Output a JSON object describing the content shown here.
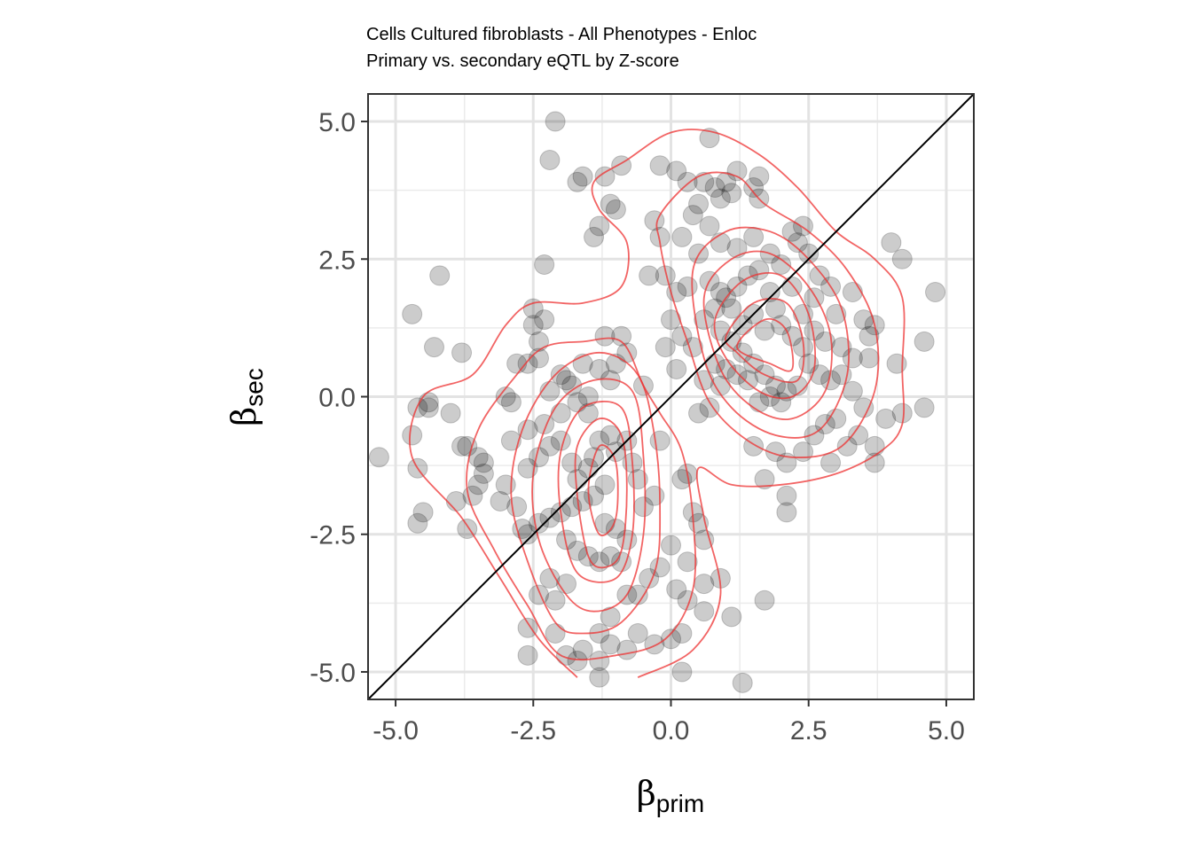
{
  "chart_data": {
    "type": "scatter",
    "title": "Cells Cultured fibroblasts - All Phenotypes - Enloc",
    "subtitle": "Primary vs. secondary eQTL by Z-score",
    "xlabel": "β",
    "xlabel_sub": "prim",
    "ylabel": "β",
    "ylabel_sub": "sec",
    "xlim": [
      -5.5,
      5.5
    ],
    "ylim": [
      -5.5,
      5.5
    ],
    "x_ticks": [
      -5.0,
      -2.5,
      0.0,
      2.5,
      5.0
    ],
    "x_tick_labels": [
      "-5.0",
      "-2.5",
      "0.0",
      "2.5",
      "5.0"
    ],
    "y_ticks": [
      -5.0,
      -2.5,
      0.0,
      2.5,
      5.0
    ],
    "y_tick_labels": [
      "-5.0",
      "-2.5",
      "0.0",
      "2.5",
      "5.0"
    ],
    "grid": true,
    "reference_line": {
      "type": "identity",
      "color": "#000000"
    },
    "point_color": "#000000",
    "point_opacity": 0.2,
    "density_color": "#ee3030",
    "points": [
      [
        -2.1,
        5.0
      ],
      [
        -2.2,
        4.3
      ],
      [
        -1.6,
        4.0
      ],
      [
        -1.7,
        3.9
      ],
      [
        -1.2,
        4.0
      ],
      [
        -0.9,
        4.2
      ],
      [
        -1.1,
        3.5
      ],
      [
        -1.0,
        3.4
      ],
      [
        -1.4,
        2.9
      ],
      [
        -1.3,
        3.1
      ],
      [
        -2.3,
        2.4
      ],
      [
        -4.2,
        2.2
      ],
      [
        -4.7,
        1.5
      ],
      [
        -4.3,
        0.9
      ],
      [
        -3.8,
        0.8
      ],
      [
        -4.6,
        -0.2
      ],
      [
        -4.4,
        -0.2
      ],
      [
        -4.4,
        -0.1
      ],
      [
        -4.0,
        -0.3
      ],
      [
        -4.7,
        -0.7
      ],
      [
        -4.6,
        -1.3
      ],
      [
        -3.8,
        -0.9
      ],
      [
        -3.7,
        -0.9
      ],
      [
        -3.5,
        -1.1
      ],
      [
        -3.4,
        -1.4
      ],
      [
        -3.0,
        -1.6
      ],
      [
        -3.6,
        -1.8
      ],
      [
        -3.9,
        -1.9
      ],
      [
        -4.5,
        -2.1
      ],
      [
        -4.6,
        -2.3
      ],
      [
        -3.7,
        -2.4
      ],
      [
        -5.3,
        -1.1
      ],
      [
        -3.4,
        -1.2
      ],
      [
        -3.1,
        -1.9
      ],
      [
        -3.5,
        -1.6
      ],
      [
        -2.6,
        -2.5
      ],
      [
        -2.7,
        -2.4
      ],
      [
        -2.5,
        1.6
      ],
      [
        -2.5,
        1.3
      ],
      [
        -2.3,
        1.4
      ],
      [
        -2.4,
        1.0
      ],
      [
        -2.6,
        0.6
      ],
      [
        -2.8,
        0.6
      ],
      [
        -2.4,
        0.7
      ],
      [
        -2.0,
        0.4
      ],
      [
        -1.9,
        0.3
      ],
      [
        -1.6,
        0.6
      ],
      [
        -1.3,
        0.5
      ],
      [
        -1.2,
        1.1
      ],
      [
        -0.9,
        1.1
      ],
      [
        -1.0,
        0.6
      ],
      [
        -1.1,
        0.3
      ],
      [
        -0.8,
        0.8
      ],
      [
        -0.5,
        0.2
      ],
      [
        -1.5,
        0.0
      ],
      [
        -1.7,
        -0.1
      ],
      [
        -2.0,
        -0.3
      ],
      [
        -2.3,
        -0.5
      ],
      [
        -2.6,
        -0.6
      ],
      [
        -2.9,
        -0.1
      ],
      [
        -3.0,
        0.0
      ],
      [
        -2.2,
        -0.9
      ],
      [
        -2.0,
        -0.8
      ],
      [
        -1.8,
        -1.2
      ],
      [
        -1.7,
        -1.5
      ],
      [
        -1.5,
        -1.3
      ],
      [
        -1.4,
        -1.1
      ],
      [
        -1.3,
        -0.8
      ],
      [
        -1.1,
        -0.7
      ],
      [
        -1.0,
        -1.0
      ],
      [
        -0.8,
        -0.8
      ],
      [
        -0.7,
        -1.2
      ],
      [
        -0.6,
        -1.5
      ],
      [
        -1.2,
        -1.6
      ],
      [
        -1.4,
        -1.8
      ],
      [
        -1.6,
        -1.9
      ],
      [
        -1.8,
        -2.0
      ],
      [
        -2.0,
        -2.1
      ],
      [
        -2.2,
        -2.2
      ],
      [
        -2.4,
        -2.3
      ],
      [
        -1.9,
        -2.6
      ],
      [
        -1.7,
        -2.8
      ],
      [
        -1.5,
        -2.9
      ],
      [
        -1.3,
        -3.0
      ],
      [
        -1.1,
        -2.9
      ],
      [
        -0.9,
        -3.0
      ],
      [
        -0.8,
        -2.6
      ],
      [
        -1.0,
        -2.4
      ],
      [
        -1.2,
        -2.3
      ],
      [
        -0.5,
        -2.0
      ],
      [
        -0.3,
        -1.8
      ],
      [
        -0.2,
        -0.8
      ],
      [
        0.3,
        -1.4
      ],
      [
        0.2,
        -1.5
      ],
      [
        0.4,
        -2.1
      ],
      [
        0.5,
        -2.3
      ],
      [
        0.6,
        -2.6
      ],
      [
        0.3,
        -3.0
      ],
      [
        0.0,
        -2.7
      ],
      [
        -0.2,
        -3.1
      ],
      [
        -0.4,
        -3.3
      ],
      [
        0.1,
        -3.5
      ],
      [
        0.3,
        -3.7
      ],
      [
        0.6,
        -3.4
      ],
      [
        0.6,
        -3.9
      ],
      [
        0.9,
        -3.3
      ],
      [
        1.1,
        -4.0
      ],
      [
        1.7,
        -3.7
      ],
      [
        -0.6,
        -4.3
      ],
      [
        -0.3,
        -4.5
      ],
      [
        0.0,
        -4.4
      ],
      [
        0.2,
        -4.3
      ],
      [
        0.2,
        -5.0
      ],
      [
        -0.8,
        -4.6
      ],
      [
        -1.1,
        -4.5
      ],
      [
        -1.3,
        -4.3
      ],
      [
        -1.6,
        -4.6
      ],
      [
        -1.7,
        -4.8
      ],
      [
        -1.9,
        -4.7
      ],
      [
        -2.1,
        -4.3
      ],
      [
        -2.6,
        -4.2
      ],
      [
        -2.6,
        -4.7
      ],
      [
        -2.4,
        -3.6
      ],
      [
        -2.1,
        -3.7
      ],
      [
        -1.9,
        -3.4
      ],
      [
        -2.2,
        -3.3
      ],
      [
        -1.3,
        -4.8
      ],
      [
        -1.3,
        -5.1
      ],
      [
        -1.1,
        -4.0
      ],
      [
        -0.8,
        -3.6
      ],
      [
        -0.6,
        -3.6
      ],
      [
        1.3,
        -5.2
      ],
      [
        -2.8,
        -2.0
      ],
      [
        -2.4,
        -1.1
      ],
      [
        -2.6,
        -1.3
      ],
      [
        -2.9,
        -0.8
      ],
      [
        -2.2,
        0.1
      ],
      [
        -1.8,
        0.2
      ],
      [
        -1.5,
        -0.3
      ],
      [
        0.7,
        4.7
      ],
      [
        0.6,
        3.9
      ],
      [
        0.8,
        3.8
      ],
      [
        1.0,
        3.9
      ],
      [
        1.2,
        4.1
      ],
      [
        1.6,
        4.0
      ],
      [
        1.1,
        3.7
      ],
      [
        0.9,
        3.6
      ],
      [
        0.5,
        3.5
      ],
      [
        0.4,
        3.3
      ],
      [
        0.7,
        3.1
      ],
      [
        1.5,
        3.8
      ],
      [
        1.6,
        3.6
      ],
      [
        -0.2,
        4.2
      ],
      [
        0.1,
        4.1
      ],
      [
        0.3,
        3.9
      ],
      [
        -0.3,
        3.2
      ],
      [
        -0.2,
        2.9
      ],
      [
        0.2,
        2.9
      ],
      [
        0.5,
        2.6
      ],
      [
        0.9,
        2.8
      ],
      [
        1.2,
        2.7
      ],
      [
        1.5,
        2.9
      ],
      [
        1.8,
        2.6
      ],
      [
        2.0,
        2.4
      ],
      [
        2.3,
        2.8
      ],
      [
        2.2,
        3.0
      ],
      [
        2.4,
        3.1
      ],
      [
        2.5,
        2.6
      ],
      [
        2.7,
        2.2
      ],
      [
        2.6,
        1.8
      ],
      [
        2.9,
        2.0
      ],
      [
        3.0,
        1.5
      ],
      [
        3.3,
        1.9
      ],
      [
        3.5,
        1.4
      ],
      [
        3.7,
        1.3
      ],
      [
        3.6,
        1.1
      ],
      [
        4.0,
        2.8
      ],
      [
        4.2,
        2.5
      ],
      [
        4.8,
        1.9
      ],
      [
        4.6,
        1.0
      ],
      [
        4.1,
        0.6
      ],
      [
        4.6,
        -0.2
      ],
      [
        4.2,
        -0.3
      ],
      [
        3.9,
        -0.4
      ],
      [
        3.7,
        -0.9
      ],
      [
        3.4,
        -0.7
      ],
      [
        3.0,
        -0.4
      ],
      [
        2.8,
        -0.5
      ],
      [
        2.6,
        -0.7
      ],
      [
        2.4,
        -1.0
      ],
      [
        2.1,
        -1.2
      ],
      [
        1.9,
        -1.0
      ],
      [
        1.5,
        -0.9
      ],
      [
        1.7,
        -1.5
      ],
      [
        2.1,
        -2.1
      ],
      [
        2.1,
        -1.8
      ],
      [
        3.7,
        -1.2
      ],
      [
        3.6,
        0.7
      ],
      [
        3.3,
        0.7
      ],
      [
        3.1,
        0.9
      ],
      [
        2.9,
        0.3
      ],
      [
        2.7,
        0.4
      ],
      [
        2.5,
        0.6
      ],
      [
        2.4,
        0.9
      ],
      [
        2.2,
        1.1
      ],
      [
        2.0,
        1.3
      ],
      [
        1.9,
        1.6
      ],
      [
        1.8,
        1.9
      ],
      [
        1.6,
        2.3
      ],
      [
        1.4,
        2.2
      ],
      [
        1.2,
        2.0
      ],
      [
        1.0,
        1.8
      ],
      [
        0.8,
        1.6
      ],
      [
        0.6,
        1.4
      ],
      [
        0.9,
        1.2
      ],
      [
        1.1,
        1.0
      ],
      [
        1.3,
        0.8
      ],
      [
        1.5,
        0.6
      ],
      [
        1.7,
        0.4
      ],
      [
        1.9,
        0.2
      ],
      [
        2.1,
        0.1
      ],
      [
        2.3,
        0.2
      ],
      [
        1.4,
        0.3
      ],
      [
        1.2,
        0.4
      ],
      [
        1.0,
        0.5
      ],
      [
        0.8,
        0.6
      ],
      [
        0.6,
        0.3
      ],
      [
        0.5,
        -0.3
      ],
      [
        0.9,
        0.2
      ],
      [
        1.6,
        -0.1
      ],
      [
        1.8,
        0.0
      ],
      [
        2.0,
        -0.1
      ],
      [
        1.5,
        1.5
      ],
      [
        1.7,
        1.2
      ],
      [
        1.3,
        1.3
      ],
      [
        1.1,
        1.6
      ],
      [
        0.9,
        1.9
      ],
      [
        0.7,
        2.1
      ],
      [
        0.3,
        2.0
      ],
      [
        0.1,
        1.9
      ],
      [
        -0.1,
        2.2
      ],
      [
        0.0,
        1.4
      ],
      [
        0.2,
        1.1
      ],
      [
        0.4,
        0.9
      ],
      [
        0.1,
        0.5
      ],
      [
        -0.1,
        0.9
      ],
      [
        -0.4,
        2.2
      ],
      [
        0.7,
        -0.2
      ],
      [
        2.2,
        2.0
      ],
      [
        2.4,
        1.5
      ],
      [
        2.6,
        1.2
      ],
      [
        2.8,
        1.0
      ],
      [
        3.1,
        0.4
      ],
      [
        3.3,
        0.1
      ],
      [
        3.5,
        -0.2
      ],
      [
        3.2,
        -0.9
      ],
      [
        2.9,
        -1.2
      ]
    ],
    "density_contours": [
      [
        [
          -1.7,
          -5.1
        ],
        [
          -2.4,
          -4.4
        ],
        [
          -3.1,
          -3.3
        ],
        [
          -3.8,
          -2.2
        ],
        [
          -4.7,
          -1.1
        ],
        [
          -4.5,
          0.0
        ],
        [
          -3.6,
          0.4
        ],
        [
          -3.0,
          1.3
        ],
        [
          -2.5,
          1.7
        ],
        [
          -1.6,
          1.7
        ],
        [
          -0.9,
          2.0
        ],
        [
          -0.8,
          2.8
        ],
        [
          -1.3,
          3.4
        ],
        [
          -1.4,
          3.9
        ],
        [
          -0.8,
          4.3
        ],
        [
          0.0,
          4.8
        ],
        [
          0.8,
          4.8
        ],
        [
          1.6,
          4.4
        ],
        [
          2.3,
          3.8
        ],
        [
          3.0,
          3.0
        ],
        [
          3.7,
          2.5
        ],
        [
          4.2,
          1.8
        ],
        [
          4.2,
          0.5
        ],
        [
          4.2,
          -0.5
        ],
        [
          3.8,
          -1.0
        ],
        [
          3.0,
          -1.4
        ],
        [
          2.0,
          -1.6
        ],
        [
          1.1,
          -1.6
        ],
        [
          0.5,
          -1.3
        ],
        [
          0.6,
          -2.2
        ],
        [
          0.9,
          -3.6
        ],
        [
          0.4,
          -4.6
        ],
        [
          -0.6,
          -5.1
        ]
      ],
      [
        [
          -2.0,
          -4.7
        ],
        [
          -2.6,
          -3.8
        ],
        [
          -3.2,
          -2.8
        ],
        [
          -3.7,
          -1.7
        ],
        [
          -3.5,
          -0.6
        ],
        [
          -2.8,
          0.4
        ],
        [
          -2.3,
          0.9
        ],
        [
          -1.6,
          1.0
        ],
        [
          -0.9,
          1.0
        ],
        [
          -0.5,
          0.2
        ],
        [
          -0.2,
          -0.3
        ],
        [
          0.2,
          -1.0
        ],
        [
          0.4,
          -2.2
        ],
        [
          0.4,
          -3.5
        ],
        [
          -0.1,
          -4.4
        ],
        [
          -1.0,
          -4.7
        ]
      ],
      [
        [
          -0.2,
          3.3
        ],
        [
          0.5,
          4.0
        ],
        [
          1.2,
          4.0
        ],
        [
          1.7,
          3.5
        ],
        [
          2.5,
          3.0
        ],
        [
          3.2,
          2.3
        ],
        [
          3.7,
          1.3
        ],
        [
          3.7,
          0.1
        ],
        [
          3.1,
          -0.9
        ],
        [
          2.2,
          -1.1
        ],
        [
          1.4,
          -0.8
        ],
        [
          0.7,
          -0.1
        ],
        [
          0.3,
          1.0
        ],
        [
          0.0,
          1.9
        ],
        [
          -0.2,
          2.8
        ]
      ],
      [
        [
          -2.1,
          -4.1
        ],
        [
          -2.6,
          -3.0
        ],
        [
          -2.9,
          -1.8
        ],
        [
          -2.7,
          -0.6
        ],
        [
          -2.1,
          0.4
        ],
        [
          -1.3,
          0.8
        ],
        [
          -0.6,
          0.4
        ],
        [
          -0.3,
          -0.7
        ],
        [
          -0.2,
          -2.0
        ],
        [
          -0.3,
          -3.2
        ],
        [
          -0.9,
          -4.1
        ],
        [
          -1.6,
          -4.3
        ]
      ],
      [
        [
          -1.9,
          -3.6
        ],
        [
          -2.4,
          -2.6
        ],
        [
          -2.5,
          -1.4
        ],
        [
          -2.1,
          -0.2
        ],
        [
          -1.4,
          0.3
        ],
        [
          -0.7,
          0.1
        ],
        [
          -0.5,
          -1.1
        ],
        [
          -0.5,
          -2.5
        ],
        [
          -0.8,
          -3.6
        ],
        [
          -1.4,
          -3.9
        ]
      ],
      [
        [
          -1.7,
          -3.2
        ],
        [
          -2.0,
          -2.1
        ],
        [
          -2.0,
          -1.0
        ],
        [
          -1.6,
          -0.2
        ],
        [
          -0.9,
          -0.2
        ],
        [
          -0.7,
          -1.2
        ],
        [
          -0.7,
          -2.5
        ],
        [
          -1.0,
          -3.3
        ]
      ],
      [
        [
          -1.5,
          -2.9
        ],
        [
          -1.7,
          -1.8
        ],
        [
          -1.7,
          -0.9
        ],
        [
          -1.3,
          -0.4
        ],
        [
          -0.9,
          -0.7
        ],
        [
          -0.8,
          -1.7
        ],
        [
          -0.9,
          -2.8
        ],
        [
          -1.2,
          -3.1
        ]
      ],
      [
        [
          -1.3,
          -2.5
        ],
        [
          -1.5,
          -1.7
        ],
        [
          -1.3,
          -0.9
        ],
        [
          -1.0,
          -1.2
        ],
        [
          -1.0,
          -2.2
        ]
      ],
      [
        [
          0.4,
          2.3
        ],
        [
          1.0,
          3.0
        ],
        [
          1.8,
          3.0
        ],
        [
          2.5,
          2.5
        ],
        [
          3.1,
          1.6
        ],
        [
          3.2,
          0.4
        ],
        [
          2.7,
          -0.6
        ],
        [
          1.9,
          -0.7
        ],
        [
          1.1,
          -0.2
        ],
        [
          0.6,
          0.7
        ]
      ],
      [
        [
          0.6,
          1.8
        ],
        [
          1.1,
          2.5
        ],
        [
          1.8,
          2.6
        ],
        [
          2.5,
          2.0
        ],
        [
          2.9,
          1.1
        ],
        [
          2.8,
          0.1
        ],
        [
          2.2,
          -0.4
        ],
        [
          1.5,
          -0.2
        ],
        [
          0.9,
          0.5
        ]
      ],
      [
        [
          0.8,
          1.4
        ],
        [
          1.3,
          2.1
        ],
        [
          2.0,
          2.2
        ],
        [
          2.5,
          1.5
        ],
        [
          2.6,
          0.5
        ],
        [
          2.2,
          0.0
        ],
        [
          1.6,
          0.1
        ],
        [
          1.0,
          0.7
        ]
      ],
      [
        [
          1.0,
          1.1
        ],
        [
          1.5,
          1.7
        ],
        [
          2.1,
          1.7
        ],
        [
          2.4,
          1.0
        ],
        [
          2.3,
          0.3
        ],
        [
          1.7,
          0.4
        ],
        [
          1.2,
          0.8
        ]
      ],
      [
        [
          1.2,
          0.9
        ],
        [
          1.7,
          1.4
        ],
        [
          2.1,
          1.2
        ],
        [
          2.2,
          0.5
        ],
        [
          1.8,
          0.6
        ]
      ]
    ]
  }
}
